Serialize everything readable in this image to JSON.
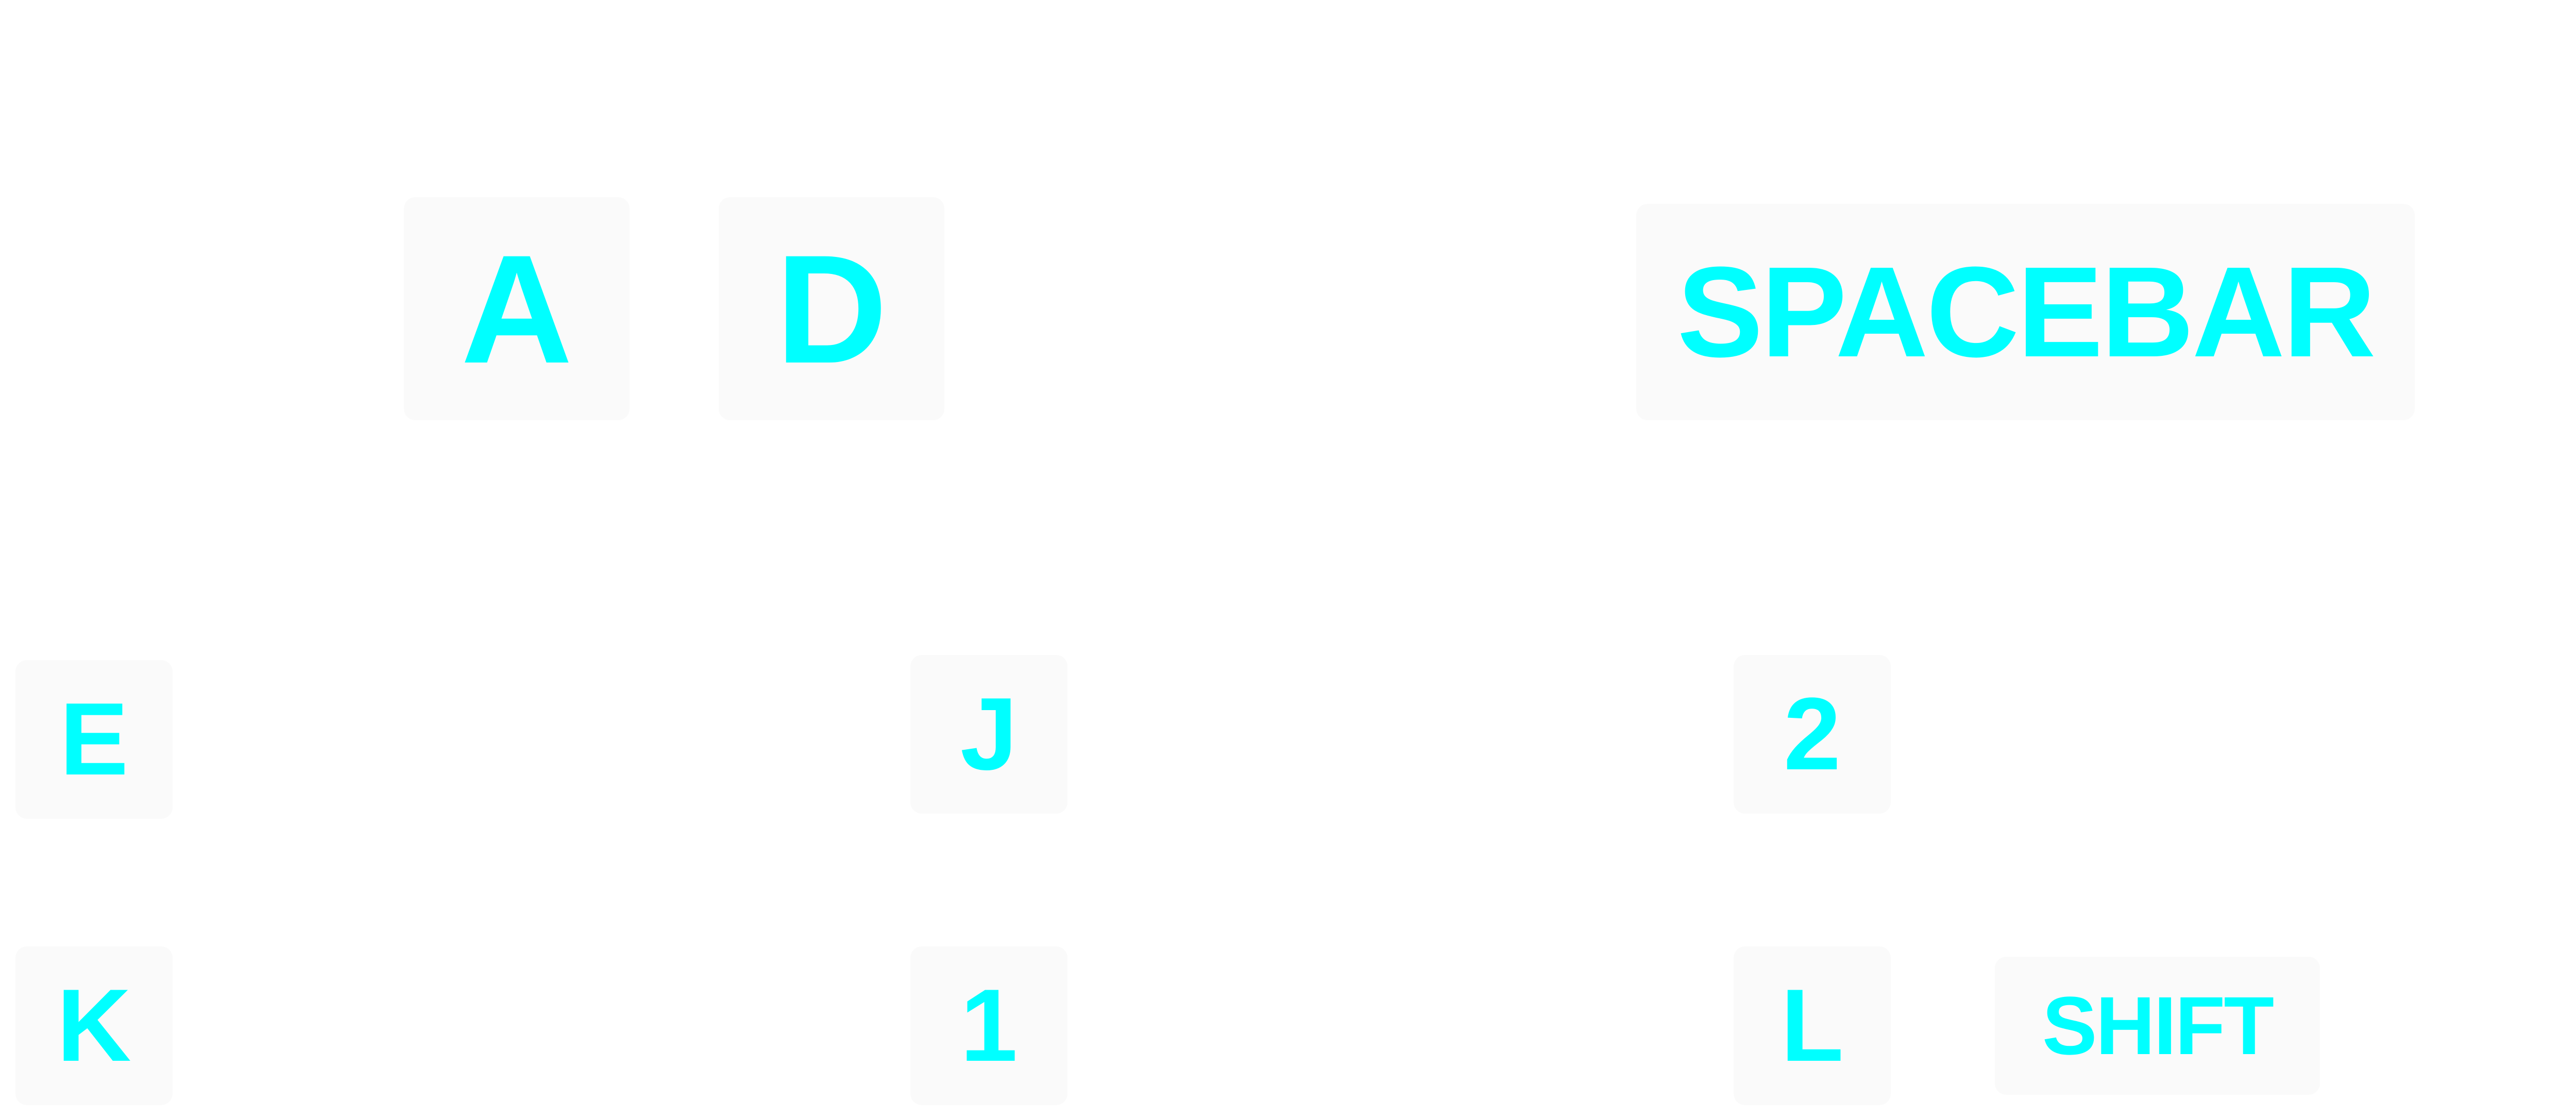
{
  "theme": {
    "background": "#ffffff",
    "key_background": "#fafafa",
    "key_text": "#00ffff"
  },
  "keys": {
    "a": "A",
    "d": "D",
    "spacebar": "SPACEBAR",
    "e": "E",
    "j": "J",
    "two": "2",
    "k": "K",
    "one": "1",
    "l": "L",
    "shift": "SHIFT"
  }
}
